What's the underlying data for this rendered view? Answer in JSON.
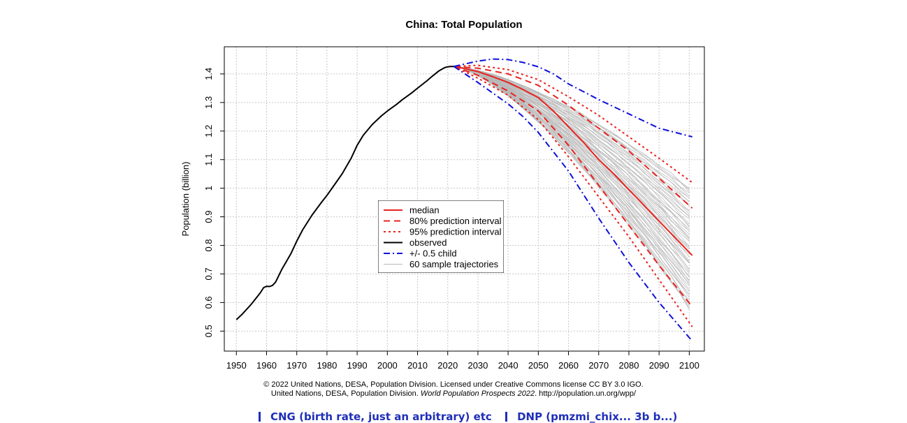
{
  "chart_data": {
    "type": "line",
    "title": "China: Total Population",
    "xlabel": "",
    "ylabel": "Population (billion)",
    "xlim": [
      1946,
      2105
    ],
    "ylim": [
      0.43,
      1.495
    ],
    "xticks": [
      1950,
      1960,
      1970,
      1980,
      1990,
      2000,
      2010,
      2020,
      2030,
      2040,
      2050,
      2060,
      2070,
      2080,
      2090,
      2100
    ],
    "yticks": [
      0.5,
      0.6,
      0.7,
      0.8,
      0.9,
      1.0,
      1.1,
      1.2,
      1.3,
      1.4
    ],
    "ytick_labels": [
      "0.5",
      "0.6",
      "0.7",
      "0.8",
      "0.9",
      "1",
      "1.1",
      "1.2",
      "1.3",
      "1.4"
    ],
    "grid": true,
    "legend_position": "center",
    "legend": [
      {
        "label": "median",
        "color": "#e8231f",
        "style": "solid"
      },
      {
        "label": "80% prediction interval",
        "color": "#e8231f",
        "style": "dashed"
      },
      {
        "label": "95% prediction interval",
        "color": "#e8231f",
        "style": "dotted"
      },
      {
        "label": "observed",
        "color": "#000000",
        "style": "solid"
      },
      {
        "label": "+/- 0.5 child",
        "color": "#1010d8",
        "style": "dashdot"
      },
      {
        "label": "60 sample trajectories",
        "color": "#b8b8b8",
        "style": "solid"
      }
    ],
    "series": [
      {
        "name": "observed",
        "x": [
          1950,
          1952,
          1955,
          1958,
          1959,
          1960,
          1961,
          1962,
          1963,
          1965,
          1968,
          1970,
          1972,
          1975,
          1978,
          1980,
          1983,
          1985,
          1988,
          1990,
          1992,
          1995,
          1998,
          2000,
          2003,
          2005,
          2008,
          2010,
          2013,
          2015,
          2017,
          2019,
          2020,
          2021,
          2022
        ],
        "y": [
          0.54,
          0.56,
          0.595,
          0.635,
          0.652,
          0.657,
          0.656,
          0.66,
          0.672,
          0.715,
          0.77,
          0.815,
          0.855,
          0.905,
          0.948,
          0.975,
          1.02,
          1.05,
          1.105,
          1.15,
          1.185,
          1.223,
          1.253,
          1.27,
          1.293,
          1.31,
          1.333,
          1.35,
          1.375,
          1.393,
          1.41,
          1.422,
          1.425,
          1.426,
          1.426
        ]
      },
      {
        "name": "median",
        "x": [
          2022,
          2025,
          2030,
          2035,
          2040,
          2045,
          2050,
          2055,
          2060,
          2065,
          2070,
          2075,
          2080,
          2085,
          2090,
          2095,
          2101
        ],
        "y": [
          1.426,
          1.42,
          1.408,
          1.39,
          1.37,
          1.345,
          1.317,
          1.27,
          1.215,
          1.16,
          1.1,
          1.05,
          0.995,
          0.94,
          0.885,
          0.83,
          0.765
        ]
      },
      {
        "name": "80% upper",
        "x": [
          2022,
          2030,
          2040,
          2050,
          2060,
          2070,
          2080,
          2090,
          2101
        ],
        "y": [
          1.426,
          1.42,
          1.4,
          1.36,
          1.29,
          1.21,
          1.13,
          1.035,
          0.93
        ]
      },
      {
        "name": "80% lower",
        "x": [
          2022,
          2030,
          2040,
          2050,
          2060,
          2070,
          2080,
          2090,
          2101
        ],
        "y": [
          1.426,
          1.395,
          1.34,
          1.27,
          1.15,
          1.01,
          0.87,
          0.73,
          0.585
        ]
      },
      {
        "name": "95% upper",
        "x": [
          2022,
          2030,
          2040,
          2050,
          2060,
          2070,
          2080,
          2090,
          2101
        ],
        "y": [
          1.426,
          1.43,
          1.415,
          1.38,
          1.32,
          1.255,
          1.18,
          1.105,
          1.02
        ]
      },
      {
        "name": "95% lower",
        "x": [
          2022,
          2030,
          2040,
          2050,
          2060,
          2070,
          2080,
          2090,
          2101
        ],
        "y": [
          1.426,
          1.385,
          1.325,
          1.24,
          1.11,
          0.97,
          0.83,
          0.68,
          0.515
        ]
      },
      {
        "name": "+0.5 child",
        "x": [
          2022,
          2030,
          2035,
          2040,
          2045,
          2050,
          2055,
          2060,
          2070,
          2080,
          2090,
          2101
        ],
        "y": [
          1.426,
          1.445,
          1.452,
          1.45,
          1.44,
          1.425,
          1.4,
          1.365,
          1.31,
          1.26,
          1.21,
          1.18
        ]
      },
      {
        "name": "-0.5 child",
        "x": [
          2022,
          2030,
          2040,
          2045,
          2050,
          2060,
          2070,
          2080,
          2090,
          2101
        ],
        "y": [
          1.426,
          1.37,
          1.295,
          1.25,
          1.195,
          1.06,
          0.895,
          0.74,
          0.6,
          0.465
        ]
      }
    ],
    "sample_trajectories": {
      "count": 60,
      "start": [
        2022,
        1.426
      ],
      "end_year": 2101,
      "end_values_range": [
        0.56,
        1.0
      ]
    }
  },
  "caption": {
    "line1": "© 2022 United Nations, DESA, Population Division. Licensed under Creative Commons license CC BY 3.0 IGO.",
    "line2_prefix": "United Nations, DESA, Population Division. ",
    "line2_italic": "World Population Prospects 2022",
    "line2_suffix": ". http://population.un.org/wpp/"
  },
  "bottom_links": {
    "left": "CNG (birth rate, just an arbitrary) etc",
    "right": "DNP (pmzmi_chix... 3b b...)"
  },
  "colors": {
    "median": "#e8231f",
    "observed": "#000000",
    "child": "#1010d8",
    "trajectories": "#b8b8b8",
    "grid": "#c8c8c8",
    "link": "#1f2fb8"
  }
}
